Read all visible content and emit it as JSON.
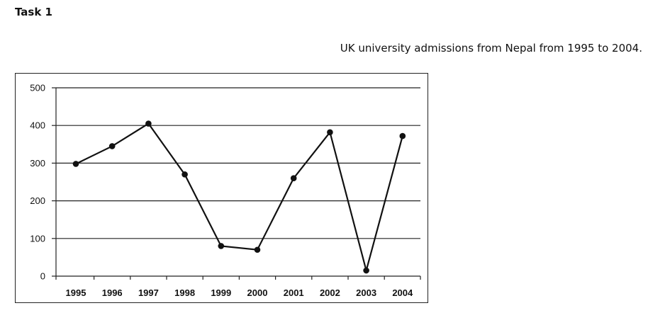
{
  "header": {
    "task_title": "Task 1"
  },
  "chart_data": {
    "type": "line",
    "title": "UK university admissions from Nepal from 1995 to 2004.",
    "xlabel": "",
    "ylabel": "",
    "categories": [
      "1995",
      "1996",
      "1997",
      "1998",
      "1999",
      "2000",
      "2001",
      "2002",
      "2003",
      "2004"
    ],
    "values": [
      298,
      345,
      405,
      270,
      80,
      70,
      260,
      382,
      15,
      372
    ],
    "ylim": [
      0,
      500
    ],
    "yticks": [
      0,
      100,
      200,
      300,
      400,
      500
    ],
    "grid": "horizontal",
    "line_color": "#111111",
    "gridline_color": "#222222"
  }
}
